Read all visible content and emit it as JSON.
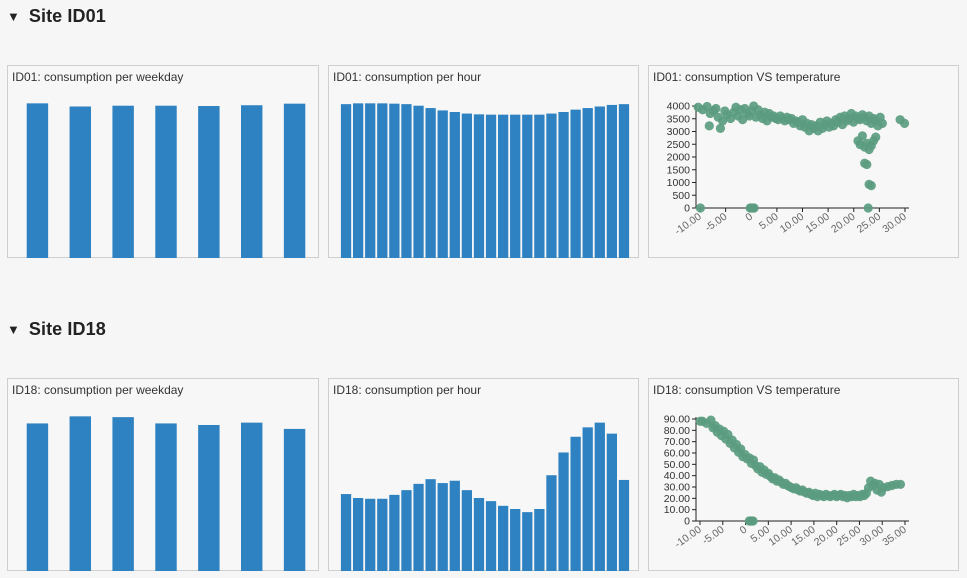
{
  "sections": [
    {
      "title": "Site ID01",
      "panels": [
        {
          "title": "ID01: consumption per weekday"
        },
        {
          "title": "ID01: consumption per hour"
        },
        {
          "title": "ID01: consumption VS temperature"
        }
      ]
    },
    {
      "title": "Site ID18",
      "panels": [
        {
          "title": "ID18: consumption per weekday"
        },
        {
          "title": "ID18: consumption per hour"
        },
        {
          "title": "ID18: consumption VS temperature"
        }
      ]
    }
  ],
  "colors": {
    "bar": "#2e82c1",
    "scatter": "#5b9c80",
    "axis": "#222222"
  },
  "chart_data": [
    {
      "type": "bar",
      "title": "ID01: consumption per weekday",
      "categories": [
        "",
        "",
        "",
        "",
        "",
        "",
        ""
      ],
      "values": [
        0.985,
        0.965,
        0.97,
        0.97,
        0.968,
        0.973,
        0.983
      ],
      "ylim": [
        0,
        1
      ]
    },
    {
      "type": "bar",
      "title": "ID01: consumption per hour",
      "categories": [
        "",
        "",
        "",
        "",
        "",
        "",
        "",
        "",
        "",
        "",
        "",
        "",
        "",
        "",
        "",
        "",
        "",
        "",
        "",
        "",
        "",
        "",
        "",
        ""
      ],
      "values": [
        0.98,
        0.985,
        0.985,
        0.985,
        0.983,
        0.98,
        0.97,
        0.955,
        0.94,
        0.93,
        0.92,
        0.915,
        0.913,
        0.913,
        0.913,
        0.913,
        0.913,
        0.92,
        0.93,
        0.945,
        0.955,
        0.965,
        0.975,
        0.98
      ],
      "ylim": [
        0,
        1
      ]
    },
    {
      "type": "scatter",
      "title": "ID01: consumption VS temperature",
      "yticks": [
        "0",
        "500",
        "1000",
        "1500",
        "2000",
        "2500",
        "3000",
        "3500",
        "4000"
      ],
      "xticks": [
        "-10.00",
        "-5.00",
        "0",
        "5.00",
        "10.00",
        "15.00",
        "20.00",
        "25.00",
        "30.00"
      ],
      "xlim": [
        -12,
        36
      ],
      "ylim": [
        0,
        4100
      ],
      "points": [
        [
          -11.5,
          4050
        ],
        [
          -10.5,
          3950
        ],
        [
          -9.5,
          4080
        ],
        [
          -8.8,
          3800
        ],
        [
          -8.0,
          3920
        ],
        [
          -9.0,
          3300
        ],
        [
          -7.5,
          4000
        ],
        [
          -7.0,
          3650
        ],
        [
          -6.5,
          3200
        ],
        [
          -6.0,
          3500
        ],
        [
          -5.5,
          3900
        ],
        [
          -5.0,
          3750
        ],
        [
          -4.2,
          3600
        ],
        [
          -3.5,
          3850
        ],
        [
          -3.0,
          4050
        ],
        [
          -2.5,
          3700
        ],
        [
          -2.0,
          3950
        ],
        [
          -1.5,
          3550
        ],
        [
          -1.0,
          4000
        ],
        [
          -0.5,
          3800
        ],
        [
          0.0,
          3700
        ],
        [
          0.5,
          3900
        ],
        [
          1.0,
          4100
        ],
        [
          1.5,
          3650
        ],
        [
          2.0,
          3950
        ],
        [
          2.5,
          3750
        ],
        [
          3.0,
          3600
        ],
        [
          3.5,
          3850
        ],
        [
          4.0,
          3500
        ],
        [
          4.5,
          3800
        ],
        [
          5.0,
          3650
        ],
        [
          5.5,
          3700
        ],
        [
          6.0,
          3600
        ],
        [
          6.5,
          3550
        ],
        [
          7.0,
          3700
        ],
        [
          7.5,
          3600
        ],
        [
          8.0,
          3500
        ],
        [
          8.5,
          3650
        ],
        [
          9.0,
          3550
        ],
        [
          9.5,
          3600
        ],
        [
          10.0,
          3400
        ],
        [
          10.5,
          3500
        ],
        [
          11.0,
          3450
        ],
        [
          11.5,
          3300
        ],
        [
          12.0,
          3550
        ],
        [
          12.5,
          3250
        ],
        [
          13.0,
          3400
        ],
        [
          13.5,
          3100
        ],
        [
          14.0,
          3350
        ],
        [
          14.5,
          3200
        ],
        [
          15.0,
          3300
        ],
        [
          15.5,
          3100
        ],
        [
          16.0,
          3450
        ],
        [
          16.5,
          3200
        ],
        [
          17.0,
          3350
        ],
        [
          17.5,
          3500
        ],
        [
          18.0,
          3250
        ],
        [
          18.5,
          3400
        ],
        [
          19.0,
          3300
        ],
        [
          19.5,
          3550
        ],
        [
          20.0,
          3450
        ],
        [
          20.5,
          3650
        ],
        [
          21.0,
          3350
        ],
        [
          21.5,
          3700
        ],
        [
          22.0,
          3500
        ],
        [
          22.5,
          3600
        ],
        [
          23.0,
          3800
        ],
        [
          23.5,
          3450
        ],
        [
          24.0,
          3700
        ],
        [
          24.5,
          3600
        ],
        [
          25.0,
          3550
        ],
        [
          25.5,
          3750
        ],
        [
          26.0,
          3650
        ],
        [
          26.5,
          3500
        ],
        [
          27.0,
          3700
        ],
        [
          27.5,
          3400
        ],
        [
          28.0,
          3600
        ],
        [
          28.5,
          3500
        ],
        [
          29.0,
          3300
        ],
        [
          29.5,
          3650
        ],
        [
          30.0,
          3400
        ],
        [
          24.5,
          2700
        ],
        [
          25.0,
          2550
        ],
        [
          25.5,
          2900
        ],
        [
          26.0,
          2450
        ],
        [
          26.5,
          2600
        ],
        [
          27.0,
          2350
        ],
        [
          27.5,
          2500
        ],
        [
          28.0,
          2700
        ],
        [
          28.5,
          2850
        ],
        [
          26.0,
          1800
        ],
        [
          26.5,
          1750
        ],
        [
          27.0,
          950
        ],
        [
          27.5,
          900
        ],
        [
          26.8,
          0
        ],
        [
          34.0,
          3550
        ],
        [
          35.0,
          3400
        ],
        [
          -11.0,
          0
        ],
        [
          0.2,
          0
        ],
        [
          0.5,
          0
        ],
        [
          0.8,
          0
        ],
        [
          1.1,
          0
        ]
      ]
    },
    {
      "type": "bar",
      "title": "ID18: consumption per weekday",
      "categories": [
        "",
        "",
        "",
        "",
        "",
        "",
        ""
      ],
      "values": [
        0.94,
        0.985,
        0.98,
        0.94,
        0.93,
        0.945,
        0.905
      ],
      "ylim": [
        0,
        1
      ]
    },
    {
      "type": "bar",
      "title": "ID18: consumption per hour",
      "categories": [
        "",
        "",
        "",
        "",
        "",
        "",
        "",
        "",
        "",
        "",
        "",
        "",
        "",
        "",
        "",
        "",
        "",
        "",
        "",
        "",
        "",
        "",
        "",
        ""
      ],
      "values": [
        0.49,
        0.465,
        0.46,
        0.46,
        0.485,
        0.515,
        0.555,
        0.585,
        0.56,
        0.575,
        0.515,
        0.465,
        0.445,
        0.415,
        0.395,
        0.375,
        0.395,
        0.61,
        0.755,
        0.855,
        0.915,
        0.945,
        0.875,
        0.58
      ],
      "ylim": [
        0,
        1
      ]
    },
    {
      "type": "scatter",
      "title": "ID18: consumption VS temperature",
      "yticks": [
        "0",
        "10.00",
        "20.00",
        "30.00",
        "40.00",
        "50.00",
        "60.00",
        "70.00",
        "80.00",
        "90.00"
      ],
      "xticks": [
        "-10.00",
        "-5.00",
        "0",
        "5.00",
        "10.00",
        "15.00",
        "20.00",
        "25.00",
        "30.00",
        "35.00"
      ],
      "xlim": [
        -12,
        38
      ],
      "ylim": [
        0,
        92
      ],
      "points": [
        [
          -10.5,
          90
        ],
        [
          -9.5,
          88
        ],
        [
          -8.5,
          91
        ],
        [
          -8.0,
          84
        ],
        [
          -7.5,
          86
        ],
        [
          -7.0,
          80
        ],
        [
          -6.5,
          83
        ],
        [
          -6.0,
          77
        ],
        [
          -5.5,
          81
        ],
        [
          -5.0,
          74
        ],
        [
          -4.5,
          78
        ],
        [
          -4.0,
          70
        ],
        [
          -3.5,
          73
        ],
        [
          -3.0,
          66
        ],
        [
          -2.5,
          69
        ],
        [
          -2.0,
          62
        ],
        [
          -1.5,
          65
        ],
        [
          -1.0,
          58
        ],
        [
          -0.5,
          60
        ],
        [
          0.0,
          56
        ],
        [
          0.5,
          57
        ],
        [
          1.0,
          52
        ],
        [
          1.5,
          55
        ],
        [
          2.0,
          50
        ],
        [
          2.5,
          47
        ],
        [
          3.0,
          49
        ],
        [
          3.5,
          44
        ],
        [
          4.0,
          46
        ],
        [
          4.5,
          42
        ],
        [
          5.0,
          43
        ],
        [
          5.5,
          40
        ],
        [
          6.0,
          38
        ],
        [
          6.5,
          39
        ],
        [
          7.0,
          36
        ],
        [
          7.5,
          37
        ],
        [
          8.0,
          35
        ],
        [
          8.5,
          33
        ],
        [
          9.0,
          34
        ],
        [
          9.5,
          32
        ],
        [
          10.0,
          31
        ],
        [
          10.5,
          30
        ],
        [
          11.0,
          29
        ],
        [
          11.5,
          30
        ],
        [
          12.0,
          28
        ],
        [
          12.5,
          27
        ],
        [
          13.0,
          28
        ],
        [
          13.5,
          26
        ],
        [
          14.0,
          25
        ],
        [
          14.5,
          26
        ],
        [
          15.0,
          24
        ],
        [
          15.5,
          23
        ],
        [
          16.0,
          25
        ],
        [
          16.5,
          22
        ],
        [
          17.0,
          24
        ],
        [
          17.5,
          23
        ],
        [
          18.0,
          22
        ],
        [
          18.5,
          24
        ],
        [
          19.0,
          23
        ],
        [
          19.5,
          22
        ],
        [
          20.0,
          23
        ],
        [
          20.5,
          24
        ],
        [
          21.0,
          22
        ],
        [
          21.5,
          23
        ],
        [
          22.0,
          24
        ],
        [
          22.5,
          22
        ],
        [
          23.0,
          23
        ],
        [
          23.5,
          21
        ],
        [
          24.0,
          23
        ],
        [
          24.5,
          22
        ],
        [
          25.0,
          24
        ],
        [
          25.5,
          22
        ],
        [
          26.0,
          23
        ],
        [
          26.5,
          22
        ],
        [
          27.0,
          24
        ],
        [
          27.5,
          23
        ],
        [
          28.0,
          25
        ],
        [
          28.5,
          30
        ],
        [
          29.0,
          36
        ],
        [
          29.5,
          32
        ],
        [
          30.0,
          34
        ],
        [
          30.5,
          28
        ],
        [
          31.0,
          33
        ],
        [
          31.5,
          26
        ],
        [
          32.0,
          30
        ],
        [
          33.0,
          31
        ],
        [
          34.0,
          32
        ],
        [
          35.0,
          33
        ],
        [
          36.0,
          33
        ],
        [
          -11.0,
          90
        ],
        [
          0.8,
          0
        ],
        [
          1.1,
          0
        ],
        [
          1.4,
          0
        ],
        [
          0.5,
          0
        ]
      ]
    }
  ]
}
